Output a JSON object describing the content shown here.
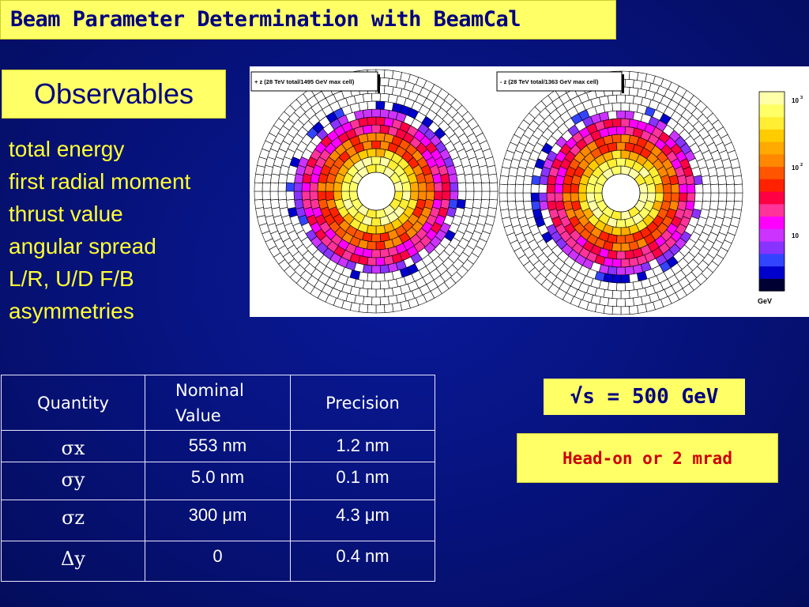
{
  "header": {
    "title": "Beam Parameter Determination with BeamCal"
  },
  "observables": {
    "heading": "Observables",
    "items": [
      "total energy",
      "first radial moment",
      "thrust value",
      "angular spread",
      "L/R, U/D  F/B",
      "asymmetries"
    ]
  },
  "plots": {
    "left_label": "+ z (28 TeV total/1495 GeV max cell)",
    "right_label": "- z (28 TeV total/1363 GeV max cell)",
    "colorbar": {
      "tick_labels": [
        "10",
        "10",
        "10",
        "GeV"
      ],
      "exponents": [
        "3",
        "2"
      ],
      "colors": [
        "#000033",
        "#0000cc",
        "#3344ff",
        "#8833ff",
        "#cc33ff",
        "#ff00ff",
        "#ff3399",
        "#ff0044",
        "#ff2200",
        "#ff5500",
        "#ff8800",
        "#ffaa00",
        "#ffcc00",
        "#ffee33",
        "#ffff66",
        "#ffffaa"
      ]
    }
  },
  "table": {
    "headers": [
      "Quantity",
      "Nominal Value",
      "Precision"
    ],
    "rows": [
      {
        "symbol": "σx",
        "nominal": "553 nm",
        "precision": "1.2 nm"
      },
      {
        "symbol": "σy",
        "nominal": "5.0 nm",
        "precision": "0.1 nm"
      },
      {
        "symbol": "σz",
        "nominal": "300 μm",
        "precision": "4.3 μm"
      },
      {
        "symbol": "Δy",
        "nominal": "0",
        "precision": "0.4 nm"
      }
    ]
  },
  "energy": {
    "label": "√s = 500 GeV"
  },
  "crossing": {
    "label": "Head-on or 2 mrad"
  }
}
